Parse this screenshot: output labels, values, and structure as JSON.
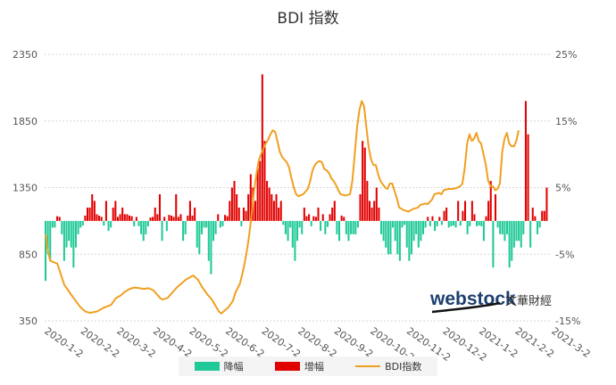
{
  "title": "BDI 指数",
  "colors": {
    "down": "#20c997",
    "up": "#e10000",
    "line": "#f0a020",
    "grid": "#d6d6d6",
    "axis": "#555555"
  },
  "legend": {
    "down_label": "降幅",
    "up_label": "增幅",
    "line_label": "BDI指数"
  },
  "watermark": {
    "brand": "webstock",
    "cn": "文華財經"
  },
  "chart_data": {
    "type": "bar+line",
    "title": "BDI 指数",
    "x_tick_labels": [
      "2020-1-2",
      "2020-2-2",
      "2020-3-2",
      "2020-4-2",
      "2020-5-2",
      "2020-6-2",
      "2020-7-2",
      "2020-8-2",
      "2020-9-2",
      "2020-10-2",
      "2020-11-2",
      "2020-12-2",
      "2021-1-2",
      "2021-2-2",
      "2021-3-2"
    ],
    "y_left": {
      "min": 350,
      "max": 2350,
      "ticks": [
        350,
        850,
        1350,
        1850,
        2350
      ]
    },
    "y_right": {
      "min": -15,
      "max": 25,
      "ticks": [
        "-15%",
        "-5%",
        "5%",
        "15%",
        "25%"
      ]
    },
    "bdi_line": {
      "name": "BDI指数",
      "points": [
        [
          0,
          1000
        ],
        [
          1,
          870
        ],
        [
          2,
          800
        ],
        [
          5,
          780
        ],
        [
          8,
          620
        ],
        [
          12,
          520
        ],
        [
          15,
          450
        ],
        [
          17,
          420
        ],
        [
          19,
          410
        ],
        [
          22,
          420
        ],
        [
          25,
          450
        ],
        [
          28,
          470
        ],
        [
          30,
          520
        ],
        [
          32,
          540
        ],
        [
          34,
          570
        ],
        [
          36,
          590
        ],
        [
          38,
          600
        ],
        [
          40,
          595
        ],
        [
          42,
          590
        ],
        [
          44,
          595
        ],
        [
          46,
          580
        ],
        [
          47,
          560
        ],
        [
          49,
          520
        ],
        [
          50,
          510
        ],
        [
          52,
          520
        ],
        [
          54,
          560
        ],
        [
          56,
          600
        ],
        [
          58,
          630
        ],
        [
          60,
          660
        ],
        [
          62,
          680
        ],
        [
          63,
          690
        ],
        [
          65,
          660
        ],
        [
          67,
          600
        ],
        [
          69,
          550
        ],
        [
          71,
          510
        ],
        [
          72,
          480
        ],
        [
          73,
          450
        ],
        [
          74,
          420
        ],
        [
          75,
          405
        ],
        [
          76,
          420
        ],
        [
          78,
          450
        ],
        [
          80,
          500
        ],
        [
          81,
          560
        ],
        [
          83,
          630
        ],
        [
          84,
          700
        ],
        [
          85,
          780
        ],
        [
          86,
          880
        ],
        [
          87,
          1000
        ],
        [
          88,
          1150
        ],
        [
          89,
          1320
        ],
        [
          90,
          1450
        ],
        [
          91,
          1550
        ],
        [
          92,
          1600
        ],
        [
          93,
          1640
        ],
        [
          94,
          1680
        ],
        [
          95,
          1710
        ],
        [
          96,
          1750
        ],
        [
          97,
          1780
        ],
        [
          98,
          1770
        ],
        [
          99,
          1700
        ],
        [
          100,
          1620
        ],
        [
          101,
          1580
        ],
        [
          102,
          1560
        ],
        [
          103,
          1540
        ],
        [
          104,
          1500
        ],
        [
          105,
          1420
        ],
        [
          106,
          1350
        ],
        [
          107,
          1300
        ],
        [
          108,
          1285
        ],
        [
          110,
          1300
        ],
        [
          112,
          1340
        ],
        [
          113,
          1400
        ],
        [
          114,
          1480
        ],
        [
          115,
          1520
        ],
        [
          116,
          1540
        ],
        [
          117,
          1550
        ],
        [
          118,
          1540
        ],
        [
          119,
          1490
        ],
        [
          120,
          1480
        ],
        [
          121,
          1460
        ],
        [
          122,
          1420
        ],
        [
          123,
          1400
        ],
        [
          124,
          1370
        ],
        [
          125,
          1330
        ],
        [
          126,
          1300
        ],
        [
          128,
          1290
        ],
        [
          130,
          1300
        ],
        [
          131,
          1400
        ],
        [
          132,
          1600
        ],
        [
          133,
          1800
        ],
        [
          134,
          1930
        ],
        [
          135,
          2000
        ],
        [
          136,
          1960
        ],
        [
          137,
          1800
        ],
        [
          138,
          1650
        ],
        [
          139,
          1560
        ],
        [
          140,
          1520
        ],
        [
          141,
          1520
        ],
        [
          142,
          1450
        ],
        [
          143,
          1400
        ],
        [
          145,
          1350
        ],
        [
          146,
          1340
        ],
        [
          147,
          1380
        ],
        [
          148,
          1380
        ],
        [
          150,
          1270
        ],
        [
          151,
          1200
        ],
        [
          153,
          1180
        ],
        [
          155,
          1170
        ],
        [
          157,
          1190
        ],
        [
          159,
          1200
        ],
        [
          160,
          1220
        ],
        [
          162,
          1230
        ],
        [
          163,
          1225
        ],
        [
          164,
          1240
        ],
        [
          165,
          1260
        ],
        [
          166,
          1300
        ],
        [
          167,
          1305
        ],
        [
          168,
          1310
        ],
        [
          169,
          1300
        ],
        [
          170,
          1330
        ],
        [
          172,
          1340
        ],
        [
          174,
          1340
        ],
        [
          176,
          1350
        ],
        [
          177,
          1360
        ],
        [
          178,
          1380
        ],
        [
          179,
          1500
        ],
        [
          180,
          1680
        ],
        [
          181,
          1750
        ],
        [
          182,
          1700
        ],
        [
          183,
          1720
        ],
        [
          184,
          1760
        ],
        [
          185,
          1700
        ],
        [
          186,
          1680
        ],
        [
          188,
          1520
        ],
        [
          189,
          1400
        ],
        [
          190,
          1360
        ],
        [
          191,
          1360
        ],
        [
          192,
          1330
        ],
        [
          193,
          1340
        ],
        [
          194,
          1380
        ],
        [
          195,
          1620
        ],
        [
          196,
          1720
        ],
        [
          197,
          1760
        ],
        [
          198,
          1680
        ],
        [
          199,
          1660
        ],
        [
          200,
          1660
        ],
        [
          201,
          1700
        ],
        [
          202,
          1780
        ]
      ]
    },
    "change_bars": {
      "unit": "%",
      "values": [
        -9,
        -5,
        -6,
        -1,
        -1,
        0.7,
        0.6,
        -2,
        -6,
        -4,
        -3,
        -4,
        -7,
        -4,
        -2,
        -1,
        -0.7,
        0.8,
        2,
        2,
        4,
        3,
        1,
        0.8,
        0.6,
        -0.7,
        3,
        -1.5,
        -1,
        2,
        3,
        0.6,
        1,
        2,
        1,
        1,
        0.8,
        0.7,
        -0.8,
        0.6,
        -0.8,
        -2,
        -3,
        -2,
        -0.8,
        0.5,
        0.6,
        2,
        1,
        4,
        -3,
        0.6,
        -1.5,
        0.9,
        0.8,
        0.6,
        4,
        0.6,
        1,
        -3,
        -2,
        0.8,
        3,
        0.8,
        2,
        -4,
        -5,
        -2,
        -1,
        -1,
        -6,
        -8,
        -3,
        -2,
        1,
        -1,
        -0.8,
        0.9,
        0.7,
        3,
        5,
        6,
        4,
        2,
        -0.8,
        2,
        1.5,
        4,
        7,
        5,
        3,
        8,
        9,
        22,
        12,
        6,
        5,
        4,
        3,
        4,
        2,
        3,
        -0.6,
        -2,
        -3,
        -1,
        -4,
        -6,
        -3,
        -1,
        -2,
        2,
        0.7,
        1,
        -0.8,
        0.7,
        0.6,
        2,
        -1.5,
        1,
        -2,
        -0.9,
        1,
        2,
        3,
        -2,
        -3,
        0.8,
        0.6,
        -2,
        -3,
        -2,
        -2,
        -2,
        -1,
        4,
        12,
        11,
        6,
        3,
        2,
        3,
        5,
        2,
        -2,
        -3,
        -4,
        -5,
        -5,
        -1,
        -3,
        -5,
        -6,
        -1,
        -0.6,
        -4,
        -6,
        -5,
        -3,
        -2,
        -4,
        -3,
        -2,
        -1,
        0.6,
        -0.8,
        0.7,
        -1.5,
        -0.8,
        0.6,
        -0.6,
        1.5,
        2,
        -1,
        -0.8,
        -0.7,
        -1,
        3,
        -0.7,
        1.5,
        3,
        -2,
        -0.8,
        3,
        1,
        -0.8,
        -0.7,
        -0.8,
        -3,
        0.7,
        3,
        6,
        -7,
        4,
        -1,
        -2,
        -2,
        -3,
        -2,
        -7,
        -6,
        -4,
        -3,
        -3,
        -4,
        -2,
        18,
        13,
        -4,
        2,
        0.7,
        -2,
        -1,
        1.5,
        1.5,
        5
      ]
    }
  }
}
